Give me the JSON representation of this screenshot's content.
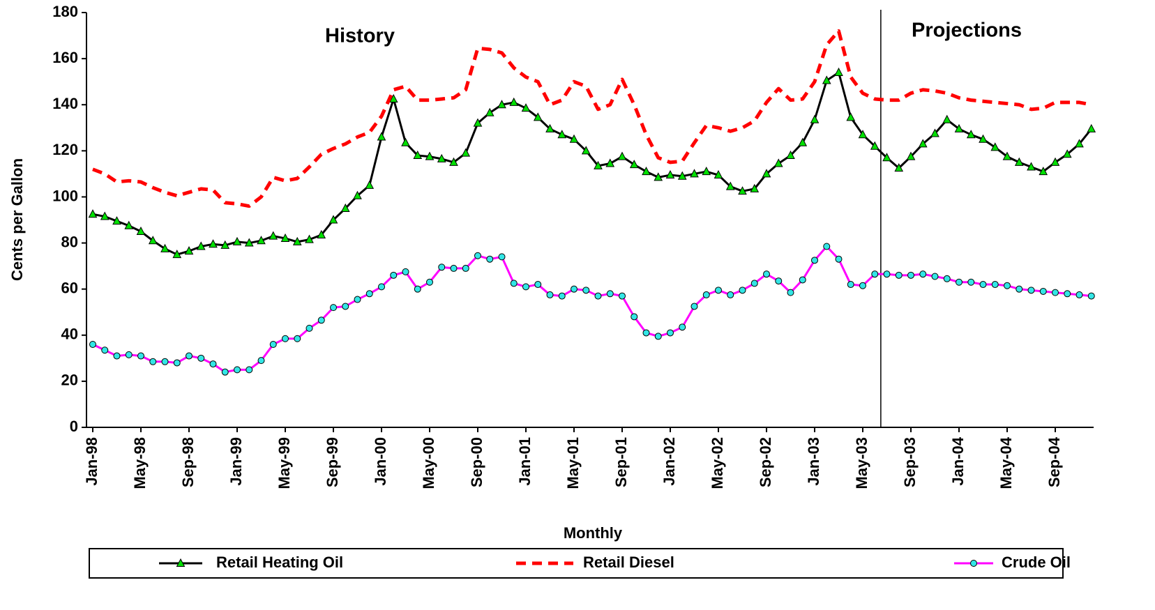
{
  "chart_data": {
    "type": "line",
    "annotations": [
      "History",
      "Projections"
    ],
    "x_label": "Monthly",
    "y_label": "Cents per Gallon",
    "categories": [
      "Jan-98",
      null,
      null,
      null,
      "May-98",
      null,
      null,
      null,
      "Sep-98",
      null,
      null,
      null,
      "Jan-99",
      null,
      null,
      null,
      "May-99",
      null,
      null,
      null,
      "Sep-99",
      null,
      null,
      null,
      "Jan-00",
      null,
      null,
      null,
      "May-00",
      null,
      null,
      null,
      "Sep-00",
      null,
      null,
      null,
      "Jan-01",
      null,
      null,
      null,
      "May-01",
      null,
      null,
      null,
      "Sep-01",
      null,
      null,
      null,
      "Jan-02",
      null,
      null,
      null,
      "May-02",
      null,
      null,
      null,
      "Sep-02",
      null,
      null,
      null,
      "Jan-03",
      null,
      null,
      null,
      "May-03",
      null,
      null,
      null,
      "Sep-03",
      null,
      null,
      null,
      "Jan-04",
      null,
      null,
      null,
      "May-04",
      null,
      null,
      null,
      "Sep-04",
      null,
      null,
      null
    ],
    "series": [
      {
        "name": "Retail Heating Oil",
        "color": "#000000",
        "marker": "triangle",
        "marker_color": "#00e000",
        "dash": "solid",
        "values": [
          92.5,
          91.5,
          89.5,
          87.5,
          85,
          81,
          77.5,
          75,
          76.5,
          78.5,
          79.5,
          79,
          80.5,
          80,
          81,
          83,
          82,
          80.5,
          81.5,
          83.5,
          90,
          95,
          100.5,
          105,
          126,
          142.5,
          123.5,
          118,
          117.5,
          116.5,
          115,
          119,
          132,
          136.5,
          140,
          141,
          138.5,
          134.5,
          129.5,
          127,
          125,
          120,
          113.5,
          114.5,
          117.5,
          114,
          111,
          108.5,
          109.5,
          109,
          110,
          111,
          109.5,
          104.5,
          102.5,
          103.5,
          110,
          114.5,
          118,
          123.5,
          133.5,
          150.5,
          154,
          134.5,
          127,
          122,
          117,
          112.5,
          117.5,
          123,
          127.5,
          133.5,
          129.5,
          127,
          125,
          121.5,
          117.5,
          115,
          113,
          111,
          115,
          118.5,
          123,
          129.5
        ]
      },
      {
        "name": "Retail Diesel",
        "color": "#ff0000",
        "marker": null,
        "dash": "dashed",
        "values": [
          112,
          110,
          106.5,
          107,
          106.5,
          104,
          102,
          100.5,
          102,
          103.5,
          103,
          97.5,
          97,
          96,
          100,
          108.5,
          107,
          108,
          113,
          118.5,
          121,
          123,
          126,
          128,
          135,
          146.5,
          148,
          142,
          142,
          142.5,
          143,
          146.5,
          164.5,
          164,
          162.5,
          156,
          152,
          150,
          140,
          142,
          150,
          148,
          138,
          140,
          151,
          140,
          127,
          117,
          115,
          115.5,
          123.5,
          131,
          130,
          128.5,
          130,
          133,
          141,
          147,
          142,
          142.5,
          150,
          166,
          172,
          152,
          145,
          142.5,
          142,
          142,
          145,
          146.5,
          146,
          145,
          143,
          142,
          141.5,
          141,
          140.5,
          140,
          138,
          138.5,
          141,
          141,
          141,
          140
        ]
      },
      {
        "name": "Crude Oil",
        "color": "#ff00ff",
        "marker": "circle",
        "marker_color": "#33e6e6",
        "dash": "solid",
        "values": [
          36,
          33.5,
          31,
          31.5,
          31,
          28.5,
          28.5,
          28,
          31,
          30,
          27.5,
          24,
          25,
          25,
          29,
          36,
          38.5,
          38.5,
          43,
          46.5,
          52,
          52.5,
          55.5,
          58,
          61,
          66,
          67.5,
          60,
          63,
          69.5,
          69,
          69,
          74.5,
          73,
          74,
          62.5,
          61,
          62,
          57.5,
          57,
          60,
          59.5,
          57,
          58,
          57,
          48,
          41,
          39.5,
          41,
          43.5,
          52.5,
          57.5,
          59.5,
          57.5,
          59.5,
          62.5,
          66.5,
          63.5,
          58.5,
          64,
          72.5,
          78.5,
          73,
          62,
          61.5,
          66.5,
          66.5,
          66,
          66,
          66.5,
          65.5,
          64.5,
          63,
          63,
          62,
          62,
          61.5,
          60,
          59.5,
          59,
          58.5,
          58,
          57.5,
          57
        ]
      }
    ],
    "ylim": [
      0,
      180
    ],
    "yticks": [
      0,
      20,
      40,
      60,
      80,
      100,
      120,
      140,
      160,
      180
    ],
    "grid": false,
    "legend": "bottom"
  }
}
